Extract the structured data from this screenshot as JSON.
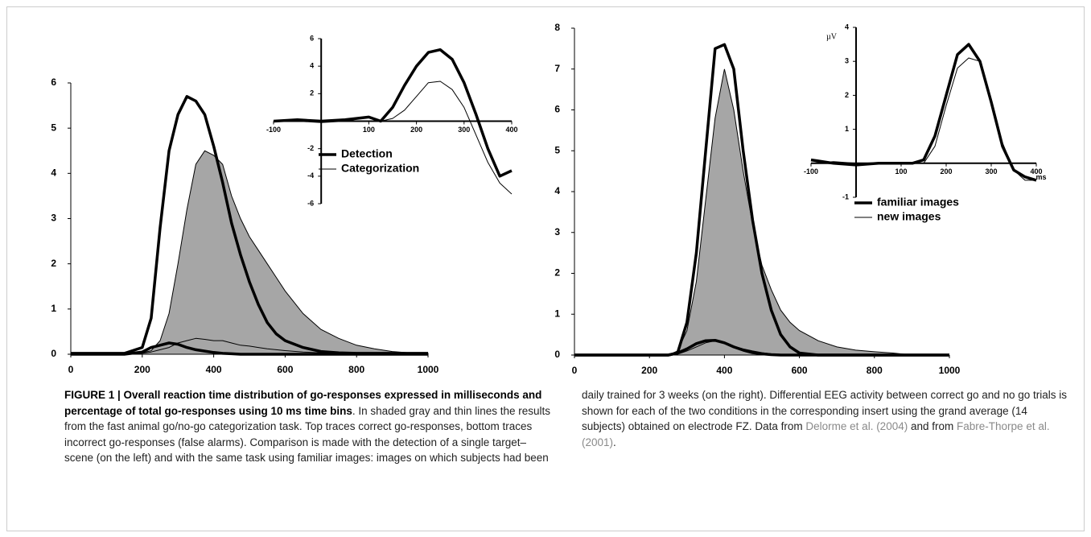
{
  "chart_data": [
    {
      "type": "line",
      "xlim": [
        0,
        1000
      ],
      "ylim": [
        0,
        6
      ],
      "xticks": [
        0,
        200,
        400,
        600,
        800,
        1000
      ],
      "yticks": [
        0,
        1,
        2,
        3,
        4,
        5,
        6
      ],
      "x": [
        0,
        100,
        150,
        200,
        225,
        250,
        275,
        300,
        325,
        350,
        375,
        400,
        425,
        450,
        475,
        500,
        525,
        550,
        575,
        600,
        650,
        700,
        750,
        800,
        850,
        900,
        950,
        1000
      ],
      "series": [
        {
          "color": "#000000",
          "fill": "#a6a6a6",
          "line_width": 1,
          "values": [
            0.02,
            0.02,
            0.02,
            0.03,
            0.08,
            0.3,
            0.9,
            2.0,
            3.2,
            4.2,
            4.5,
            4.4,
            4.2,
            3.5,
            3.0,
            2.6,
            2.3,
            2.0,
            1.7,
            1.4,
            0.9,
            0.55,
            0.35,
            0.2,
            0.12,
            0.06,
            0.03,
            0.02
          ]
        },
        {
          "color": "#000000",
          "line_width": 1,
          "values": [
            0,
            0,
            0,
            0.02,
            0.05,
            0.1,
            0.15,
            0.25,
            0.3,
            0.35,
            0.33,
            0.3,
            0.3,
            0.25,
            0.2,
            0.18,
            0.15,
            0.12,
            0.1,
            0.08,
            0.05,
            0.03,
            0.02,
            0.01,
            0,
            0,
            0,
            0
          ]
        },
        {
          "color": "#000000",
          "line_width": 3.5,
          "values": [
            0.02,
            0.02,
            0.02,
            0.15,
            0.8,
            2.8,
            4.5,
            5.3,
            5.7,
            5.6,
            5.3,
            4.6,
            3.8,
            2.9,
            2.2,
            1.6,
            1.1,
            0.7,
            0.45,
            0.3,
            0.15,
            0.06,
            0.03,
            0.02,
            0.02,
            0.02,
            0.02,
            0.02
          ]
        },
        {
          "color": "#000000",
          "line_width": 3.5,
          "values": [
            0,
            0,
            0,
            0.05,
            0.15,
            0.2,
            0.25,
            0.22,
            0.15,
            0.1,
            0.07,
            0.04,
            0.02,
            0.01,
            0,
            0,
            0,
            0,
            0,
            0,
            0,
            0,
            0,
            0,
            0,
            0,
            0,
            0
          ]
        }
      ]
    },
    {
      "type": "line",
      "xlim": [
        0,
        1000
      ],
      "ylim": [
        0,
        8
      ],
      "xticks": [
        0,
        200,
        400,
        600,
        800,
        1000
      ],
      "yticks": [
        0,
        1,
        2,
        3,
        4,
        5,
        6,
        7,
        8
      ],
      "x": [
        0,
        100,
        150,
        200,
        225,
        250,
        275,
        300,
        325,
        350,
        375,
        400,
        425,
        450,
        475,
        500,
        525,
        550,
        575,
        600,
        650,
        700,
        750,
        800,
        850,
        900,
        950,
        1000
      ],
      "series": [
        {
          "color": "#000000",
          "fill": "#a6a6a6",
          "line_width": 1,
          "values": [
            0,
            0,
            0,
            0,
            0,
            0,
            0.1,
            0.6,
            1.8,
            3.8,
            5.8,
            7.0,
            6.0,
            4.5,
            3.2,
            2.2,
            1.6,
            1.1,
            0.8,
            0.6,
            0.35,
            0.2,
            0.12,
            0.08,
            0.05,
            0,
            0,
            0
          ]
        },
        {
          "color": "#000000",
          "line_width": 1,
          "values": [
            0,
            0,
            0,
            0,
            0,
            0,
            0.02,
            0.1,
            0.2,
            0.3,
            0.35,
            0.3,
            0.22,
            0.15,
            0.1,
            0.06,
            0.03,
            0.02,
            0.01,
            0,
            0,
            0,
            0,
            0,
            0,
            0,
            0,
            0
          ]
        },
        {
          "color": "#000000",
          "line_width": 3.5,
          "values": [
            0,
            0,
            0,
            0,
            0,
            0,
            0.05,
            0.8,
            2.5,
            5.0,
            7.5,
            7.6,
            7.0,
            5.0,
            3.3,
            2.0,
            1.1,
            0.5,
            0.2,
            0.05,
            0,
            0,
            0,
            0,
            0,
            0,
            0,
            0
          ]
        },
        {
          "color": "#000000",
          "line_width": 3.5,
          "values": [
            0,
            0,
            0,
            0,
            0,
            0,
            0.05,
            0.15,
            0.28,
            0.35,
            0.36,
            0.3,
            0.2,
            0.12,
            0.06,
            0.03,
            0.01,
            0,
            0,
            0,
            0,
            0,
            0,
            0,
            0,
            0,
            0,
            0
          ]
        }
      ]
    },
    {
      "type": "line",
      "xlim": [
        -100,
        400
      ],
      "ylim": [
        -6,
        6
      ],
      "xticks": [
        -100,
        100,
        200,
        300,
        400
      ],
      "yticks": [
        -6,
        -4,
        -2,
        2,
        4,
        6
      ],
      "legend": true,
      "x": [
        -100,
        -50,
        0,
        50,
        100,
        125,
        150,
        175,
        200,
        225,
        250,
        275,
        300,
        325,
        350,
        375,
        400
      ],
      "series": [
        {
          "name": "Detection",
          "color": "#000000",
          "line_width": 3.5,
          "values": [
            0,
            0.1,
            0,
            0.1,
            0.3,
            0,
            1.0,
            2.6,
            4.0,
            5.0,
            5.2,
            4.5,
            2.8,
            0.5,
            -2.0,
            -4.0,
            -3.6
          ]
        },
        {
          "name": "Categorization",
          "color": "#000000",
          "line_width": 1,
          "values": [
            0,
            0,
            -0.1,
            0,
            0.3,
            0,
            0.2,
            0.8,
            1.8,
            2.8,
            2.9,
            2.3,
            1.0,
            -1.0,
            -3.0,
            -4.5,
            -5.3
          ]
        }
      ]
    },
    {
      "type": "line",
      "xlim": [
        -100,
        400
      ],
      "ylim": [
        -1,
        4
      ],
      "xticks": [
        -100,
        100,
        200,
        300,
        400
      ],
      "yticks": [
        -1,
        1,
        2,
        3,
        4
      ],
      "legend": true,
      "xlabel": "ms",
      "ylabel": "µV",
      "x": [
        -100,
        -50,
        0,
        50,
        100,
        125,
        150,
        175,
        200,
        225,
        250,
        275,
        300,
        325,
        350,
        375,
        400
      ],
      "series": [
        {
          "name": "familiar images",
          "color": "#000000",
          "line_width": 3.5,
          "values": [
            0.1,
            0,
            -0.05,
            0,
            0,
            0,
            0.1,
            0.8,
            2.0,
            3.2,
            3.5,
            3.0,
            1.8,
            0.5,
            -0.2,
            -0.4,
            -0.5
          ]
        },
        {
          "name": "new images",
          "color": "#000000",
          "line_width": 1,
          "values": [
            0,
            0.05,
            0,
            0,
            0,
            0,
            0,
            0.5,
            1.7,
            2.8,
            3.1,
            3.0,
            1.9,
            0.6,
            -0.2,
            -0.5,
            -0.5
          ]
        }
      ]
    }
  ],
  "caption": {
    "title": "FIGURE 1 | Overall reaction time distribution of go-responses expressed in milliseconds and percentage of total go-responses using 10 ms time bins",
    "body_1": ". In shaded gray and thin lines the results from the fast animal go/no-go categorization task. Top traces correct go-responses, bottom traces incorrect go-responses (false alarms). Comparison is made with the detection of a single target–scene (on the left) and with the same task using familiar images: images on which subjects had been daily trained for 3 weeks (on the right). Differential EEG activity between correct go and no go trials is shown for each of the two conditions in the corresponding insert using the grand average (14 subjects) obtained on electrode FZ. Data from",
    "ref_1": "Delorme et al. (2004)",
    "body_2": "and from",
    "ref_2": "Fabre-Thorpe et al. (2001)",
    "body_3": "."
  }
}
